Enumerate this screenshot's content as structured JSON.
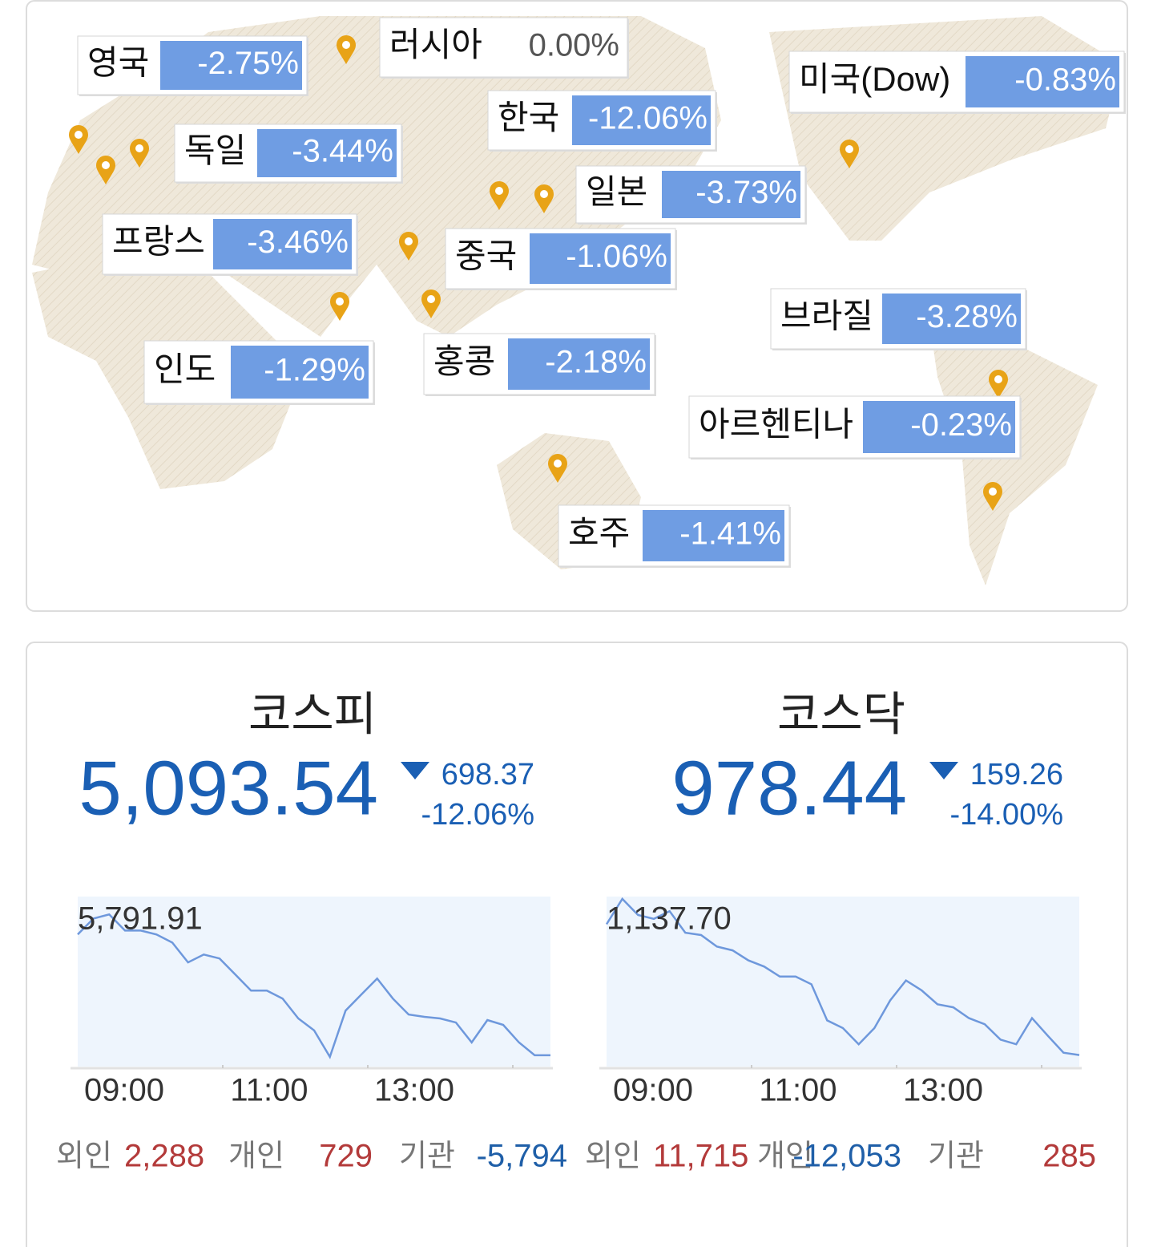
{
  "map": {
    "markers": [
      {
        "name": "영국",
        "change": "-2.75%"
      },
      {
        "name": "러시아",
        "change": "0.00%"
      },
      {
        "name": "한국",
        "change": "-12.06%"
      },
      {
        "name": "미국(Dow)",
        "change": "-0.83%"
      },
      {
        "name": "독일",
        "change": "-3.44%"
      },
      {
        "name": "일본",
        "change": "-3.73%"
      },
      {
        "name": "프랑스",
        "change": "-3.46%"
      },
      {
        "name": "중국",
        "change": "-1.06%"
      },
      {
        "name": "브라질",
        "change": "-3.28%"
      },
      {
        "name": "인도",
        "change": "-1.29%"
      },
      {
        "name": "홍콩",
        "change": "-2.18%"
      },
      {
        "name": "아르헨티나",
        "change": "-0.23%"
      },
      {
        "name": "호주",
        "change": "-1.41%"
      }
    ]
  },
  "indices": [
    {
      "name": "코스피",
      "value": "5,093.54",
      "change": "698.37",
      "change_pct": "-12.06%",
      "chart": {
        "type": "line",
        "start_label": "5,791.91",
        "values": [
          5768,
          5857,
          5880,
          5790,
          5790,
          5768,
          5723,
          5612,
          5656,
          5634,
          5544,
          5455,
          5455,
          5410,
          5299,
          5232,
          5084,
          5343,
          5433,
          5522,
          5410,
          5321,
          5308,
          5299,
          5276,
          5165,
          5290,
          5263,
          5165,
          5093,
          5093
        ],
        "ylim": [
          5030,
          5980
        ],
        "xticks": [
          "09:00",
          "11:00",
          "13:00"
        ]
      },
      "flows": [
        {
          "label": "외인",
          "value": "2,288"
        },
        {
          "label": "개인",
          "value": "729"
        },
        {
          "label": "기관",
          "value": "-5,794"
        }
      ]
    },
    {
      "name": "코스닥",
      "value": "978.44",
      "change": "159.26",
      "change_pct": "-14.00%",
      "chart": {
        "type": "line",
        "start_label": "1,137.70",
        "values": [
          1148,
          1181,
          1160,
          1155,
          1165,
          1137,
          1134,
          1119,
          1114,
          1101,
          1093,
          1080,
          1080,
          1070,
          1023,
          1013,
          992,
          1013,
          1049,
          1075,
          1062,
          1044,
          1040,
          1026,
          1018,
          998,
          992,
          1026,
          1003,
          981,
          978
        ],
        "ylim": [
          963,
          1184
        ],
        "xticks": [
          "09:00",
          "11:00",
          "13:00"
        ]
      },
      "flows": [
        {
          "label": "외인",
          "value": "11,715"
        },
        {
          "label": "개인",
          "value": "-12,053"
        },
        {
          "label": "기관",
          "value": "285"
        }
      ]
    }
  ]
}
